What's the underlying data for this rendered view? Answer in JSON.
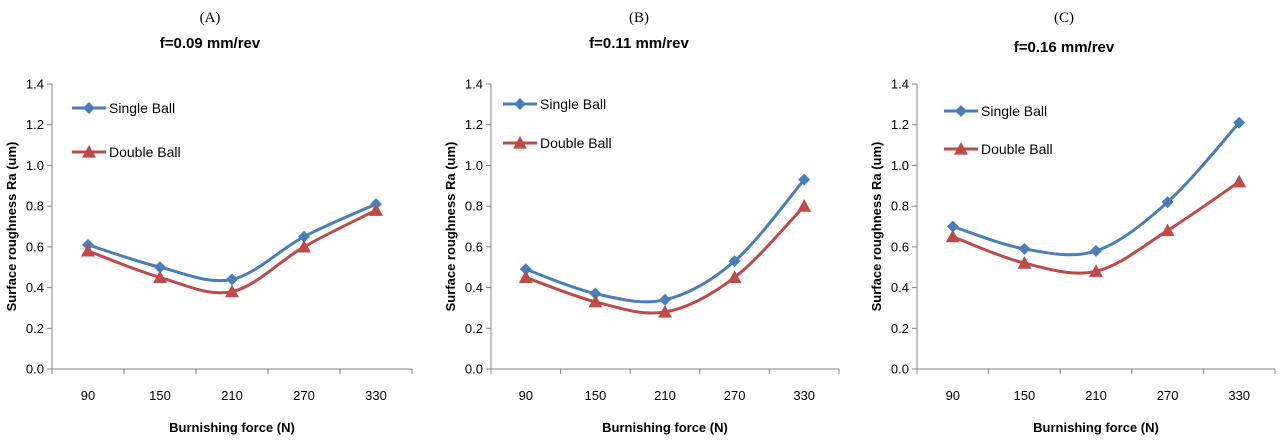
{
  "chart_data": [
    {
      "type": "line",
      "panel_label": "(A)",
      "title": "f=0.09 mm/rev",
      "xlabel": "Burnishing force (N)",
      "ylabel": "Surface roughness Ra (um)",
      "categories": [
        "90",
        "150",
        "210",
        "270",
        "330"
      ],
      "ylim": [
        0,
        1.4
      ],
      "yticks": [
        "0.0",
        "0.2",
        "0.4",
        "0.6",
        "0.8",
        "1.0",
        "1.2",
        "1.4"
      ],
      "grid": false,
      "legend_position": "top-left",
      "series": [
        {
          "name": "Single Ball",
          "values": [
            0.61,
            0.5,
            0.44,
            0.65,
            0.81
          ],
          "color": "#4a7ebb",
          "marker": "diamond"
        },
        {
          "name": "Double Ball",
          "values": [
            0.58,
            0.45,
            0.38,
            0.6,
            0.78
          ],
          "color": "#be4b48",
          "marker": "triangle"
        }
      ]
    },
    {
      "type": "line",
      "panel_label": "(B)",
      "title": "f=0.11 mm/rev",
      "xlabel": "Burnishing force (N)",
      "ylabel": "Surface roughness Ra (um)",
      "categories": [
        "90",
        "150",
        "210",
        "270",
        "330"
      ],
      "ylim": [
        0,
        1.4
      ],
      "yticks": [
        "0.0",
        "0.2",
        "0.4",
        "0.6",
        "0.8",
        "1.0",
        "1.2",
        "1.4"
      ],
      "grid": false,
      "legend_position": "top-left",
      "series": [
        {
          "name": "Single Ball",
          "values": [
            0.49,
            0.37,
            0.34,
            0.53,
            0.93
          ],
          "color": "#4a7ebb",
          "marker": "diamond"
        },
        {
          "name": "Double Ball",
          "values": [
            0.45,
            0.33,
            0.28,
            0.45,
            0.8
          ],
          "color": "#be4b48",
          "marker": "triangle"
        }
      ]
    },
    {
      "type": "line",
      "panel_label": "(C)",
      "title": "f=0.16 mm/rev",
      "xlabel": "Burnishing force (N)",
      "ylabel": "Surface roughness Ra (um)",
      "categories": [
        "90",
        "150",
        "210",
        "270",
        "330"
      ],
      "ylim": [
        0,
        1.4
      ],
      "yticks": [
        "0.0",
        "0.2",
        "0.4",
        "0.6",
        "0.8",
        "1.0",
        "1.2",
        "1.4"
      ],
      "grid": false,
      "legend_position": "top-left",
      "series": [
        {
          "name": "Single Ball",
          "values": [
            0.7,
            0.59,
            0.58,
            0.82,
            1.21
          ],
          "color": "#4a7ebb",
          "marker": "diamond"
        },
        {
          "name": "Double Ball",
          "values": [
            0.65,
            0.52,
            0.48,
            0.68,
            0.92
          ],
          "color": "#be4b48",
          "marker": "triangle"
        }
      ]
    }
  ]
}
